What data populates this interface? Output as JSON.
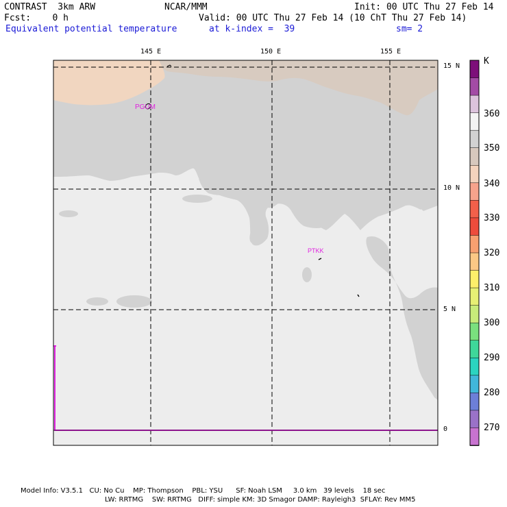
{
  "header": {
    "model": "CONTRAST  3km ARW",
    "forecast": "Fcst:    0 h",
    "variable": "Equivalent potential temperature",
    "org": "NCAR/MMM",
    "valid": "Valid: 00 UTC Thu 27 Feb 14 (10 ChT Thu 27 Feb 14)",
    "level": "at k-index =  39",
    "init": "Init: 00 UTC Thu 27 Feb 14",
    "smoothing": "sm= 2"
  },
  "map": {
    "lon_labels": [
      "145 E",
      "150 E",
      "155 E"
    ],
    "lat_labels": [
      "15 N",
      "10 N",
      "5 N",
      "0"
    ],
    "stations": [
      "PGUM",
      "PTKK"
    ],
    "colors": {
      "ocean_main": "#ededed",
      "ocean_mid": "#d2d2d2",
      "ocean_warm": "#d8cbc0",
      "ocean_peach": "#f1d6c0",
      "equator_line": "#e020e0"
    }
  },
  "colorbar": {
    "unit": "K",
    "labels": [
      "360",
      "350",
      "340",
      "330",
      "320",
      "310",
      "300",
      "290",
      "280",
      "270"
    ],
    "colors": [
      "#7d0f7a",
      "#a34ba5",
      "#dcc3dc",
      "#f4f4f4",
      "#d2d2d2",
      "#d7c8bd",
      "#f4d3bd",
      "#f7a38c",
      "#f2604a",
      "#ed4c3c",
      "#f7a070",
      "#fbc885",
      "#fdef6a",
      "#e7f074",
      "#c8ec7a",
      "#7ae07e",
      "#3fd79a",
      "#2bd4c0",
      "#41b7da",
      "#6d7fd8",
      "#9a72c8",
      "#c873d0"
    ]
  },
  "footer": {
    "line1": "Model Info: V3.5.1   CU: No Cu    MP: Thompson    PBL: YSU      SF: Noah LSM     3.0 km   39 levels    18 sec",
    "line2": "LW: RRTMG    SW: RRTMG   DIFF: simple KM: 3D Smagor DAMP: Rayleigh3  SFLAY: Rev MM5"
  }
}
